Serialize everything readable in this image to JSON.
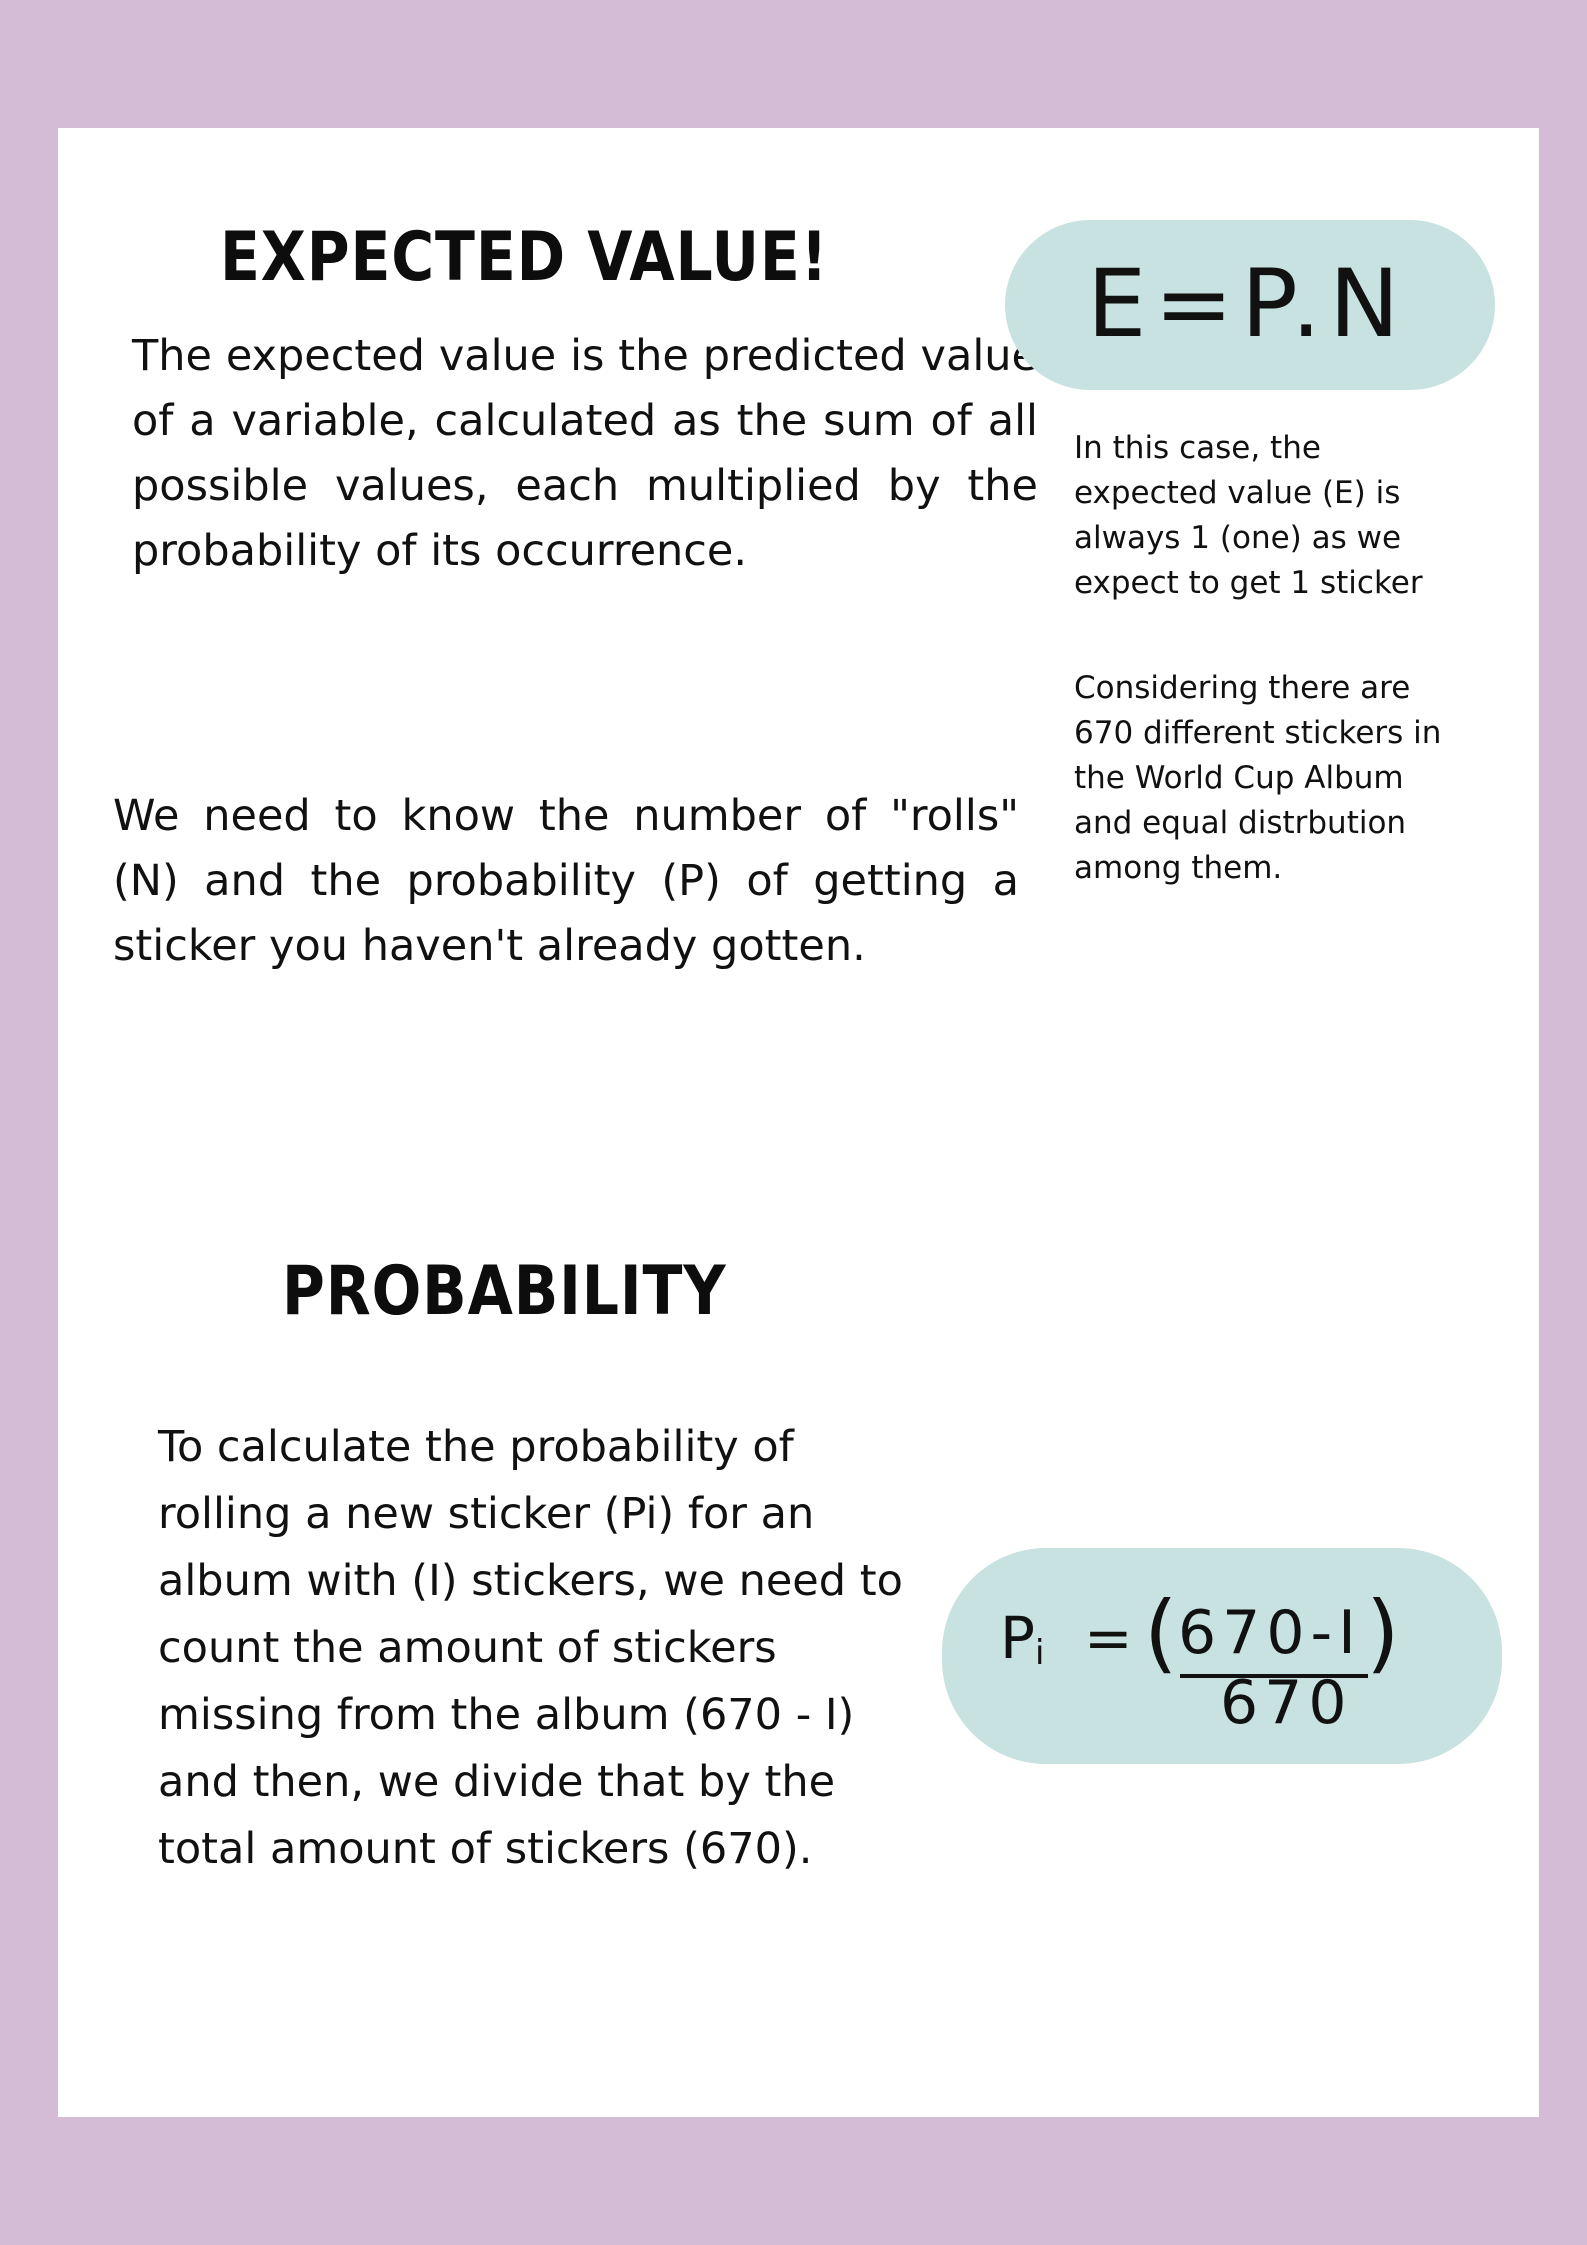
{
  "expected_value": {
    "title": "EXPECTED VALUE!",
    "definition": "The expected value is the predicted value of a variable, calculated as the sum of all possible values, each multiplied by the probability of its occurrence.",
    "need": "We need to know the number of \"rolls\" (N) and the probability (P) of getting a sticker you haven't already gotten.",
    "formula": "E=P.N",
    "note_1": "In this case, the expected value (E) is always 1 (one) as we expect to get 1 sticker",
    "note_2": "Considering there are 670 different stickers in the World Cup Album and equal distrbution among them."
  },
  "probability": {
    "title": "PROBABILITY",
    "explanation": "To calculate the probability of rolling a new sticker (Pi) for an album with (I) stickers, we need to count the amount of stickers missing from the album (670 - I) and then, we divide that by the total amount of stickers (670).",
    "formula": {
      "lhs": "P",
      "subscript": "i",
      "equals": "=",
      "open_paren": "(",
      "numerator": "670-I",
      "close_paren": ")",
      "denominator": "670"
    }
  },
  "colors": {
    "border": "#d5bcd6",
    "pill": "#c7e2e0",
    "sheet": "#ffffff"
  }
}
